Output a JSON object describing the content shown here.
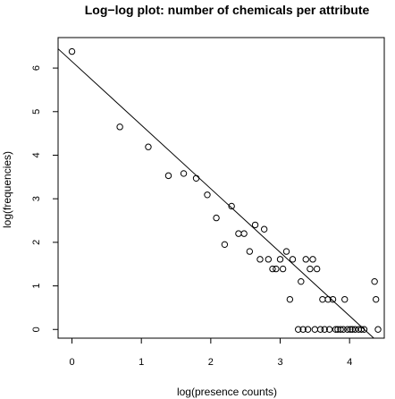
{
  "chart_data": {
    "type": "scatter",
    "title": "Log−log plot: number of chemicals per attribute",
    "xlabel": "log(presence counts)",
    "ylabel": "log(frequencies)",
    "xlim": [
      -0.2,
      4.5
    ],
    "ylim": [
      -0.2,
      6.7
    ],
    "x_ticks": [
      0,
      1,
      2,
      3,
      4
    ],
    "y_ticks": [
      0,
      1,
      2,
      3,
      4,
      5,
      6
    ],
    "grid": false,
    "legend": "none",
    "points": [
      [
        0,
        6.38
      ],
      [
        0.69,
        4.65
      ],
      [
        1.1,
        4.19
      ],
      [
        1.39,
        3.53
      ],
      [
        1.61,
        3.58
      ],
      [
        1.79,
        3.47
      ],
      [
        1.95,
        3.09
      ],
      [
        2.08,
        2.56
      ],
      [
        2.2,
        1.95
      ],
      [
        2.3,
        2.83
      ],
      [
        2.4,
        2.2
      ],
      [
        2.48,
        2.2
      ],
      [
        2.56,
        1.79
      ],
      [
        2.64,
        2.4
      ],
      [
        2.71,
        1.61
      ],
      [
        2.77,
        2.3
      ],
      [
        2.83,
        1.61
      ],
      [
        2.89,
        1.39
      ],
      [
        2.94,
        1.39
      ],
      [
        3.0,
        1.61
      ],
      [
        3.04,
        1.39
      ],
      [
        3.09,
        1.79
      ],
      [
        3.14,
        0.69
      ],
      [
        3.18,
        1.61
      ],
      [
        3.26,
        0.0
      ],
      [
        3.3,
        1.1
      ],
      [
        3.33,
        0.0
      ],
      [
        3.37,
        1.61
      ],
      [
        3.4,
        0.0
      ],
      [
        3.43,
        1.39
      ],
      [
        3.47,
        1.61
      ],
      [
        3.5,
        0.0
      ],
      [
        3.53,
        1.39
      ],
      [
        3.58,
        0.0
      ],
      [
        3.61,
        0.69
      ],
      [
        3.64,
        0.0
      ],
      [
        3.69,
        0.69
      ],
      [
        3.71,
        0.0
      ],
      [
        3.76,
        0.69
      ],
      [
        3.8,
        0.0
      ],
      [
        3.83,
        0.0
      ],
      [
        3.87,
        0.0
      ],
      [
        3.91,
        0.0
      ],
      [
        3.93,
        0.69
      ],
      [
        3.97,
        0.0
      ],
      [
        4.01,
        0.0
      ],
      [
        4.04,
        0.0
      ],
      [
        4.08,
        0.0
      ],
      [
        4.13,
        0.0
      ],
      [
        4.17,
        0.0
      ],
      [
        4.21,
        0.0
      ],
      [
        4.36,
        1.1
      ],
      [
        4.38,
        0.69
      ],
      [
        4.41,
        0.0
      ]
    ],
    "fit_line": {
      "intercept": 6.15,
      "slope": -1.46
    },
    "colors": {
      "point": "#000000",
      "line": "#000000",
      "frame": "#000000"
    }
  }
}
